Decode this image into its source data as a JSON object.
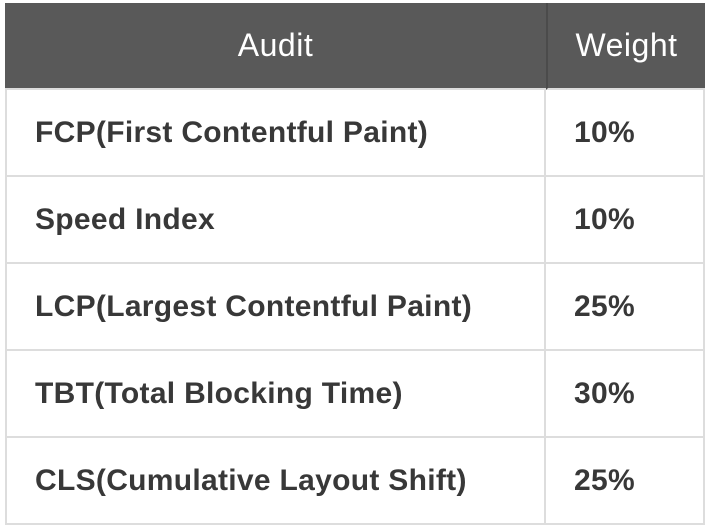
{
  "table": {
    "header": {
      "audit_label": "Audit",
      "weight_label": "Weight"
    },
    "rows": [
      {
        "audit": "FCP(First Contentful Paint)",
        "weight": "10%"
      },
      {
        "audit": "Speed Index",
        "weight": "10%"
      },
      {
        "audit": "LCP(Largest Contentful Paint)",
        "weight": "25%"
      },
      {
        "audit": "TBT(Total Blocking Time)",
        "weight": "30%"
      },
      {
        "audit": "CLS(Cumulative Layout Shift)",
        "weight": "25%"
      }
    ],
    "colors": {
      "header_background": "#595959",
      "header_text": "#ffffff",
      "body_text": "#383838",
      "grid_line": "#dddddd",
      "header_divider": "#4b4b4b"
    }
  },
  "chart_data": {
    "type": "table",
    "title": "",
    "columns": [
      "Audit",
      "Weight"
    ],
    "rows": [
      [
        "FCP(First Contentful Paint)",
        "10%"
      ],
      [
        "Speed Index",
        "10%"
      ],
      [
        "LCP(Largest Contentful Paint)",
        "25%"
      ],
      [
        "TBT(Total Blocking Time)",
        "30%"
      ],
      [
        "CLS(Cumulative Layout Shift)",
        "25%"
      ]
    ],
    "weights_percent": [
      10,
      10,
      25,
      30,
      25
    ],
    "layout": {
      "header_row": true,
      "grid": true,
      "last_row_cropped": true
    }
  }
}
